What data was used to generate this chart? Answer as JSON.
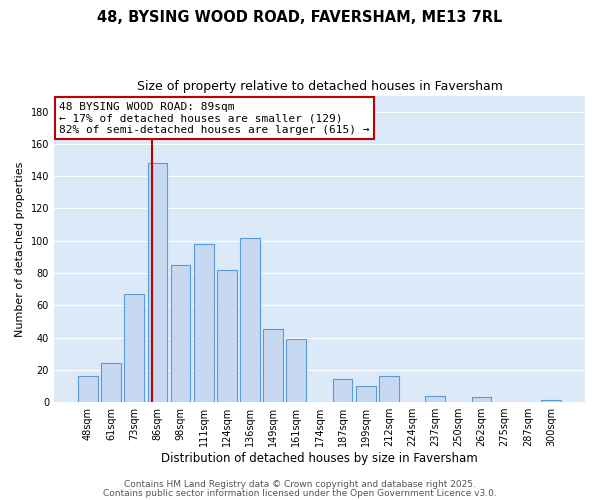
{
  "title": "48, BYSING WOOD ROAD, FAVERSHAM, ME13 7RL",
  "subtitle": "Size of property relative to detached houses in Faversham",
  "xlabel": "Distribution of detached houses by size in Faversham",
  "ylabel": "Number of detached properties",
  "bar_labels": [
    "48sqm",
    "61sqm",
    "73sqm",
    "86sqm",
    "98sqm",
    "111sqm",
    "124sqm",
    "136sqm",
    "149sqm",
    "161sqm",
    "174sqm",
    "187sqm",
    "199sqm",
    "212sqm",
    "224sqm",
    "237sqm",
    "250sqm",
    "262sqm",
    "275sqm",
    "287sqm",
    "300sqm"
  ],
  "bar_values": [
    16,
    24,
    67,
    148,
    85,
    98,
    82,
    102,
    45,
    39,
    0,
    14,
    10,
    16,
    0,
    4,
    0,
    3,
    0,
    0,
    1
  ],
  "bar_color": "#c6d9f1",
  "bar_edge_color": "#5b9bd5",
  "ylim": [
    0,
    190
  ],
  "yticks": [
    0,
    20,
    40,
    60,
    80,
    100,
    120,
    140,
    160,
    180
  ],
  "vline_color": "#c00000",
  "annotation_line1": "48 BYSING WOOD ROAD: 89sqm",
  "annotation_line2": "← 17% of detached houses are smaller (129)",
  "annotation_line3": "82% of semi-detached houses are larger (615) →",
  "annotation_box_color": "#ffffff",
  "annotation_box_edge": "#c00000",
  "footer1": "Contains HM Land Registry data © Crown copyright and database right 2025.",
  "footer2": "Contains public sector information licensed under the Open Government Licence v3.0.",
  "plot_bg_color": "#dce9f8",
  "fig_bg_color": "#ffffff",
  "grid_color": "#ffffff",
  "title_fontsize": 10.5,
  "subtitle_fontsize": 9,
  "xlabel_fontsize": 8.5,
  "ylabel_fontsize": 8,
  "tick_fontsize": 7,
  "footer_fontsize": 6.5,
  "annotation_fontsize": 8
}
